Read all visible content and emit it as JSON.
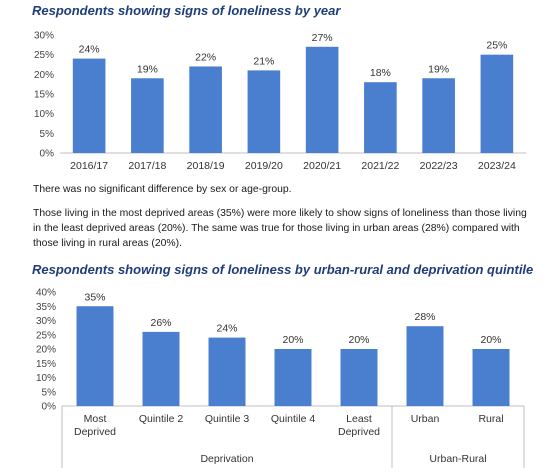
{
  "heading1": "Respondents showing signs of loneliness by year",
  "note1": "There was no significant difference by sex or age-group.",
  "note2": "Those living in the most deprived areas (35%) were more likely to show signs of loneliness than those living in the least deprived areas (20%).  The same was true for those living in urban areas (28%) compared with those living in rural areas (20%).",
  "heading2": "Respondents showing signs of loneliness by urban-rural and deprivation quintile",
  "colors": {
    "bar": "#4a7ecf",
    "axis": "#bfbfbf"
  },
  "chart_data": [
    {
      "type": "bar",
      "title": "Respondents showing signs of loneliness by year",
      "categories": [
        "2016/17",
        "2017/18",
        "2018/19",
        "2019/20",
        "2020/21",
        "2021/22",
        "2022/23",
        "2023/24"
      ],
      "values": [
        24,
        19,
        22,
        21,
        27,
        18,
        19,
        25
      ],
      "data_labels": [
        "24%",
        "19%",
        "22%",
        "21%",
        "27%",
        "18%",
        "19%",
        "25%"
      ],
      "ylim": [
        0,
        30
      ],
      "yticks": [
        "0%",
        "5%",
        "10%",
        "15%",
        "20%",
        "25%",
        "30%"
      ],
      "grid": false
    },
    {
      "type": "bar",
      "title": "Respondents showing signs of loneliness by urban-rural and deprivation quintile",
      "categories": [
        "Most Deprived",
        "Quintile 2",
        "Quintile 3",
        "Quintile 4",
        "Least Deprived",
        "Urban",
        "Rural"
      ],
      "category_lines": [
        [
          "Most",
          "Deprived"
        ],
        [
          "Quintile 2"
        ],
        [
          "Quintile 3"
        ],
        [
          "Quintile 4"
        ],
        [
          "Least",
          "Deprived"
        ],
        [
          "Urban"
        ],
        [
          "Rural"
        ]
      ],
      "values": [
        35,
        26,
        24,
        20,
        20,
        28,
        20
      ],
      "data_labels": [
        "35%",
        "26%",
        "24%",
        "20%",
        "20%",
        "28%",
        "20%"
      ],
      "groups": [
        {
          "label": "Deprivation",
          "count": 5
        },
        {
          "label": "Urban-Rural",
          "count": 2
        }
      ],
      "ylim": [
        0,
        40
      ],
      "yticks": [
        "0%",
        "5%",
        "10%",
        "15%",
        "20%",
        "25%",
        "30%",
        "35%",
        "40%"
      ],
      "grid": false
    }
  ]
}
